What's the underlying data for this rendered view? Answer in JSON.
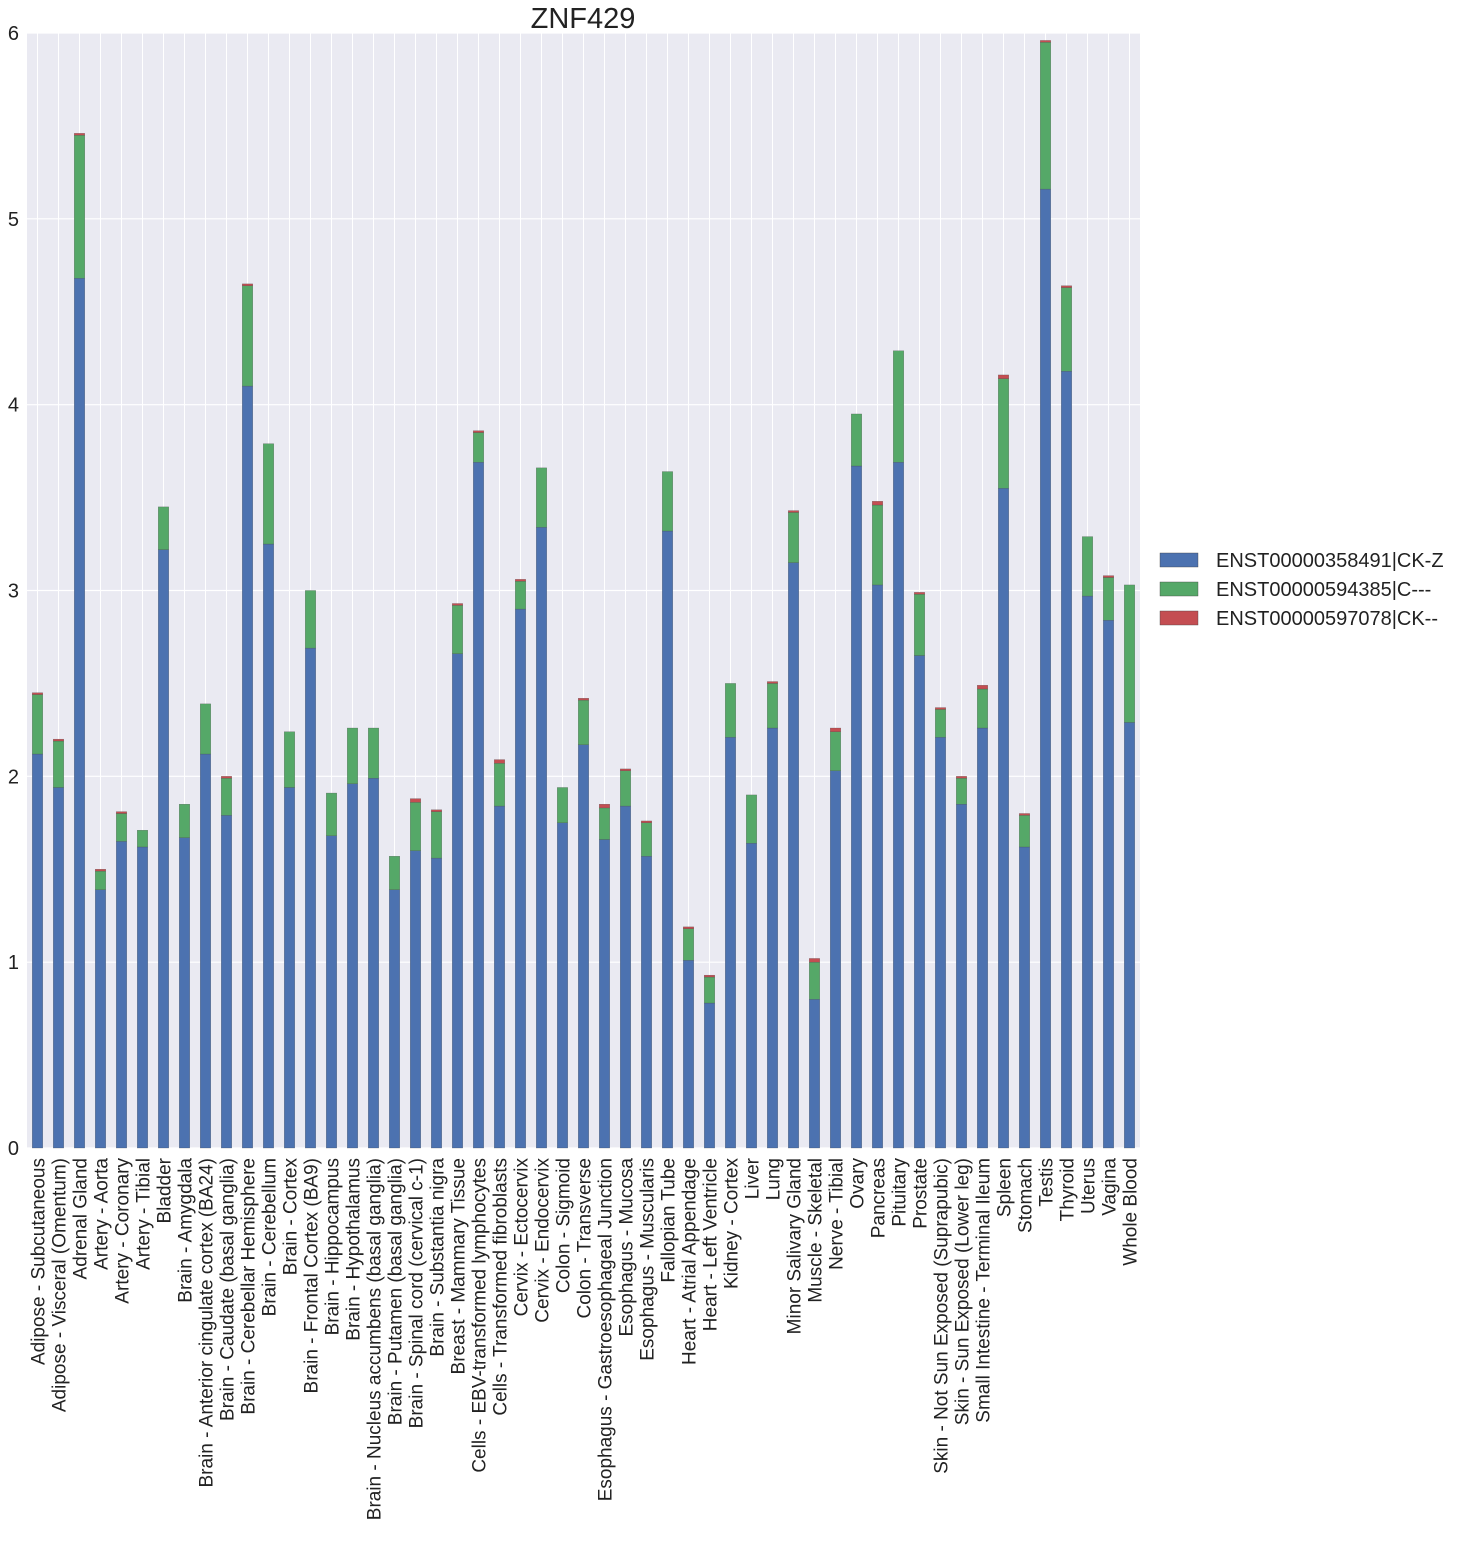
{
  "chart_data": {
    "type": "bar",
    "stacked": true,
    "title": "ZNF429",
    "xlabel": "",
    "ylabel": "",
    "ylim": [
      0,
      6
    ],
    "yticks": [
      "0",
      "1",
      "2",
      "3",
      "4",
      "5",
      "6"
    ],
    "grid": true,
    "legend_position": "right",
    "categories": [
      "Adipose - Subcutaneous",
      "Adipose - Visceral (Omentum)",
      "Adrenal Gland",
      "Artery - Aorta",
      "Artery - Coronary",
      "Artery - Tibial",
      "Bladder",
      "Brain - Amygdala",
      "Brain - Anterior cingulate cortex (BA24)",
      "Brain - Caudate (basal ganglia)",
      "Brain - Cerebellar Hemisphere",
      "Brain - Cerebellum",
      "Brain - Cortex",
      "Brain - Frontal Cortex (BA9)",
      "Brain - Hippocampus",
      "Brain - Hypothalamus",
      "Brain - Nucleus accumbens (basal ganglia)",
      "Brain - Putamen (basal ganglia)",
      "Brain - Spinal cord (cervical c-1)",
      "Brain - Substantia nigra",
      "Breast - Mammary Tissue",
      "Cells - EBV-transformed lymphocytes",
      "Cells - Transformed fibroblasts",
      "Cervix - Ectocervix",
      "Cervix - Endocervix",
      "Colon - Sigmoid",
      "Colon - Transverse",
      "Esophagus - Gastroesophageal Junction",
      "Esophagus - Mucosa",
      "Esophagus - Muscularis",
      "Fallopian Tube",
      "Heart - Atrial Appendage",
      "Heart - Left Ventricle",
      "Kidney - Cortex",
      "Liver",
      "Lung",
      "Minor Salivary Gland",
      "Muscle - Skeletal",
      "Nerve - Tibial",
      "Ovary",
      "Pancreas",
      "Pituitary",
      "Prostate",
      "Skin - Not Sun Exposed (Suprapubic)",
      "Skin - Sun Exposed (Lower leg)",
      "Small Intestine - Terminal Ileum",
      "Spleen",
      "Stomach",
      "Testis",
      "Thyroid",
      "Uterus",
      "Vagina",
      "Whole Blood"
    ],
    "series": [
      {
        "name": "ENST00000358491|CK-Z",
        "color": "#4c72b0",
        "values": [
          2.12,
          1.94,
          4.68,
          1.39,
          1.65,
          1.62,
          3.22,
          1.67,
          2.12,
          1.79,
          4.1,
          3.25,
          1.94,
          2.69,
          1.68,
          1.96,
          1.99,
          1.39,
          1.6,
          1.56,
          2.66,
          3.69,
          1.84,
          2.9,
          3.34,
          1.75,
          2.17,
          1.66,
          1.84,
          1.57,
          3.32,
          1.01,
          0.78,
          2.21,
          1.64,
          2.26,
          3.15,
          0.8,
          2.03,
          3.67,
          3.03,
          3.69,
          2.65,
          2.21,
          1.85,
          2.26,
          3.55,
          1.62,
          5.16,
          4.18,
          2.97,
          2.84,
          2.29
        ]
      },
      {
        "name": "ENST00000594385|C---",
        "color": "#55a868",
        "values": [
          0.32,
          0.25,
          0.77,
          0.1,
          0.15,
          0.09,
          0.23,
          0.18,
          0.27,
          0.2,
          0.54,
          0.54,
          0.3,
          0.31,
          0.23,
          0.3,
          0.27,
          0.18,
          0.26,
          0.25,
          0.26,
          0.16,
          0.23,
          0.15,
          0.32,
          0.19,
          0.24,
          0.17,
          0.19,
          0.18,
          0.32,
          0.17,
          0.14,
          0.29,
          0.26,
          0.24,
          0.27,
          0.2,
          0.21,
          0.28,
          0.43,
          0.6,
          0.33,
          0.15,
          0.14,
          0.21,
          0.59,
          0.17,
          0.79,
          0.45,
          0.32,
          0.23,
          0.74
        ]
      },
      {
        "name": "ENST00000597078|CK--",
        "color": "#c44e52",
        "values": [
          0.01,
          0.01,
          0.01,
          0.01,
          0.01,
          0.0,
          0.0,
          0.0,
          0.0,
          0.01,
          0.01,
          0.0,
          0.0,
          0.0,
          0.0,
          0.0,
          0.0,
          0.0,
          0.02,
          0.01,
          0.01,
          0.01,
          0.02,
          0.01,
          0.0,
          0.0,
          0.01,
          0.02,
          0.01,
          0.01,
          0.0,
          0.01,
          0.01,
          0.0,
          0.0,
          0.01,
          0.01,
          0.02,
          0.02,
          0.0,
          0.02,
          0.0,
          0.01,
          0.01,
          0.01,
          0.02,
          0.02,
          0.01,
          0.01,
          0.01,
          0.0,
          0.01,
          0.0
        ]
      }
    ]
  }
}
